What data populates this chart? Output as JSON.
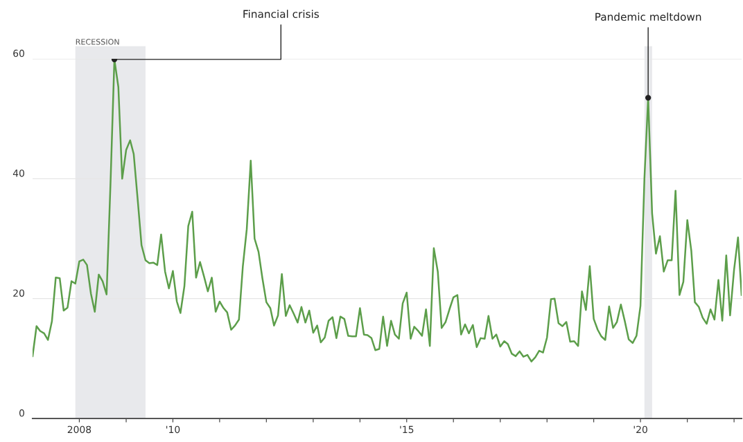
{
  "chart_data": {
    "type": "line",
    "x": [
      "2007-01",
      "2007-02",
      "2007-03",
      "2007-04",
      "2007-05",
      "2007-06",
      "2007-07",
      "2007-08",
      "2007-09",
      "2007-10",
      "2007-11",
      "2007-12",
      "2008-01",
      "2008-02",
      "2008-03",
      "2008-04",
      "2008-05",
      "2008-06",
      "2008-07",
      "2008-08",
      "2008-09",
      "2008-10",
      "2008-11",
      "2008-12",
      "2009-01",
      "2009-02",
      "2009-03",
      "2009-04",
      "2009-05",
      "2009-06",
      "2009-07",
      "2009-08",
      "2009-09",
      "2009-10",
      "2009-11",
      "2009-12",
      "2010-01",
      "2010-02",
      "2010-03",
      "2010-04",
      "2010-05",
      "2010-06",
      "2010-07",
      "2010-08",
      "2010-09",
      "2010-10",
      "2010-11",
      "2010-12",
      "2011-01",
      "2011-02",
      "2011-03",
      "2011-04",
      "2011-05",
      "2011-06",
      "2011-07",
      "2011-08",
      "2011-09",
      "2011-10",
      "2011-11",
      "2011-12",
      "2012-01",
      "2012-02",
      "2012-03",
      "2012-04",
      "2012-05",
      "2012-06",
      "2012-07",
      "2012-08",
      "2012-09",
      "2012-10",
      "2012-11",
      "2012-12",
      "2013-01",
      "2013-02",
      "2013-03",
      "2013-04",
      "2013-05",
      "2013-06",
      "2013-07",
      "2013-08",
      "2013-09",
      "2013-10",
      "2013-11",
      "2013-12",
      "2014-01",
      "2014-02",
      "2014-03",
      "2014-04",
      "2014-05",
      "2014-06",
      "2014-07",
      "2014-08",
      "2014-09",
      "2014-10",
      "2014-11",
      "2014-12",
      "2015-01",
      "2015-02",
      "2015-03",
      "2015-04",
      "2015-05",
      "2015-06",
      "2015-07",
      "2015-08",
      "2015-09",
      "2015-10",
      "2015-11",
      "2015-12",
      "2016-01",
      "2016-02",
      "2016-03",
      "2016-04",
      "2016-05",
      "2016-06",
      "2016-07",
      "2016-08",
      "2016-09",
      "2016-10",
      "2016-11",
      "2016-12",
      "2017-01",
      "2017-02",
      "2017-03",
      "2017-04",
      "2017-05",
      "2017-06",
      "2017-07",
      "2017-08",
      "2017-09",
      "2017-10",
      "2017-11",
      "2017-12",
      "2018-01",
      "2018-02",
      "2018-03",
      "2018-04",
      "2018-05",
      "2018-06",
      "2018-07",
      "2018-08",
      "2018-09",
      "2018-10",
      "2018-11",
      "2018-12",
      "2019-01",
      "2019-02",
      "2019-03",
      "2019-04",
      "2019-05",
      "2019-06",
      "2019-07",
      "2019-08",
      "2019-09",
      "2019-10",
      "2019-11",
      "2019-12",
      "2020-01",
      "2020-02",
      "2020-03",
      "2020-04",
      "2020-05",
      "2020-06",
      "2020-07",
      "2020-08",
      "2020-09",
      "2020-10",
      "2020-11",
      "2020-12",
      "2021-01",
      "2021-02",
      "2021-03",
      "2021-04",
      "2021-05",
      "2021-06",
      "2021-07",
      "2021-08",
      "2021-09",
      "2021-10",
      "2021-11",
      "2021-12",
      "2022-01",
      "2022-02",
      "2022-03"
    ],
    "series": [
      {
        "color": "#5c9e4a",
        "values": [
          10.4,
          15.4,
          14.6,
          14.2,
          13.1,
          16.2,
          23.5,
          23.4,
          18.0,
          18.5,
          22.9,
          22.5,
          26.2,
          26.5,
          25.6,
          20.8,
          17.8,
          24.0,
          22.9,
          20.7,
          39.4,
          59.9,
          55.3,
          40.0,
          44.8,
          46.4,
          44.1,
          36.5,
          28.9,
          26.4,
          25.9,
          26.0,
          25.6,
          30.7,
          24.5,
          21.7,
          24.6,
          19.5,
          17.6,
          22.1,
          32.1,
          34.5,
          23.5,
          26.1,
          23.7,
          21.2,
          23.5,
          17.8,
          19.5,
          18.4,
          17.7,
          14.8,
          15.5,
          16.5,
          25.3,
          31.6,
          43.0,
          30.0,
          27.8,
          23.4,
          19.4,
          18.4,
          15.5,
          17.2,
          24.1,
          17.1,
          18.9,
          17.5,
          16.0,
          18.6,
          16.0,
          18.0,
          14.3,
          15.5,
          12.7,
          13.5,
          16.3,
          16.9,
          13.4,
          17.0,
          16.6,
          13.8,
          13.7,
          13.7,
          18.4,
          14.0,
          13.9,
          13.4,
          11.4,
          11.6,
          17.0,
          12.1,
          16.3,
          14.0,
          13.3,
          19.2,
          21.0,
          13.3,
          15.3,
          14.6,
          13.8,
          18.2,
          12.1,
          28.4,
          24.5,
          15.1,
          16.1,
          18.2,
          20.2,
          20.6,
          14.0,
          15.7,
          14.2,
          15.6,
          11.9,
          13.4,
          13.3,
          17.1,
          13.3,
          14.0,
          12.0,
          12.9,
          12.4,
          10.8,
          10.4,
          11.2,
          10.3,
          10.6,
          9.5,
          10.2,
          11.3,
          11.0,
          13.5,
          19.9,
          20.0,
          15.9,
          15.4,
          16.1,
          12.8,
          12.9,
          12.1,
          21.2,
          18.1,
          25.4,
          16.6,
          14.8,
          13.7,
          13.1,
          18.7,
          15.1,
          16.1,
          19.0,
          16.2,
          13.2,
          12.6,
          13.8,
          18.8,
          40.1,
          53.5,
          34.2,
          27.5,
          30.4,
          24.5,
          26.4,
          26.4,
          38.0,
          20.6,
          22.8,
          33.1,
          28.0,
          19.4,
          18.6,
          16.8,
          15.8,
          18.2,
          16.5,
          23.1,
          16.3,
          27.2,
          17.2,
          24.8,
          30.2,
          20.6
        ]
      }
    ],
    "xlim": [
      "2007-01",
      "2022-03"
    ],
    "xticks": [
      {
        "value": "2008-01-01",
        "label": "2008"
      },
      {
        "value": "2009-01-01",
        "label": null
      },
      {
        "value": "2010-01-01",
        "label": "'10"
      },
      {
        "value": "2011-01-01",
        "label": null
      },
      {
        "value": "2012-01-01",
        "label": null
      },
      {
        "value": "2013-01-01",
        "label": null
      },
      {
        "value": "2014-01-01",
        "label": null
      },
      {
        "value": "2015-01-01",
        "label": "'15"
      },
      {
        "value": "2016-01-01",
        "label": null
      },
      {
        "value": "2017-01-01",
        "label": null
      },
      {
        "value": "2018-01-01",
        "label": null
      },
      {
        "value": "2019-01-01",
        "label": null
      },
      {
        "value": "2020-01-01",
        "label": "'20"
      },
      {
        "value": "2021-01-01",
        "label": null
      },
      {
        "value": "2022-01-01",
        "label": null
      }
    ],
    "ylim": [
      0,
      60
    ],
    "yticks": [
      0,
      20,
      40,
      60
    ],
    "grid": "y",
    "marker": "none",
    "line_style": "solid",
    "bands": [
      {
        "axis": "x",
        "from": "2007-12",
        "to": "2009-06",
        "label": "RECESSION",
        "color": "#e8e9ec"
      },
      {
        "axis": "x",
        "from": "2020-02",
        "to": "2020-04",
        "label": null,
        "color": "#e8e9ec"
      }
    ],
    "annotations": [
      {
        "text": "Financial crisis",
        "x": "2008-10",
        "y": 59.9
      },
      {
        "text": "Pandemic meltdown",
        "x": "2020-03",
        "y": 53.5
      }
    ]
  }
}
